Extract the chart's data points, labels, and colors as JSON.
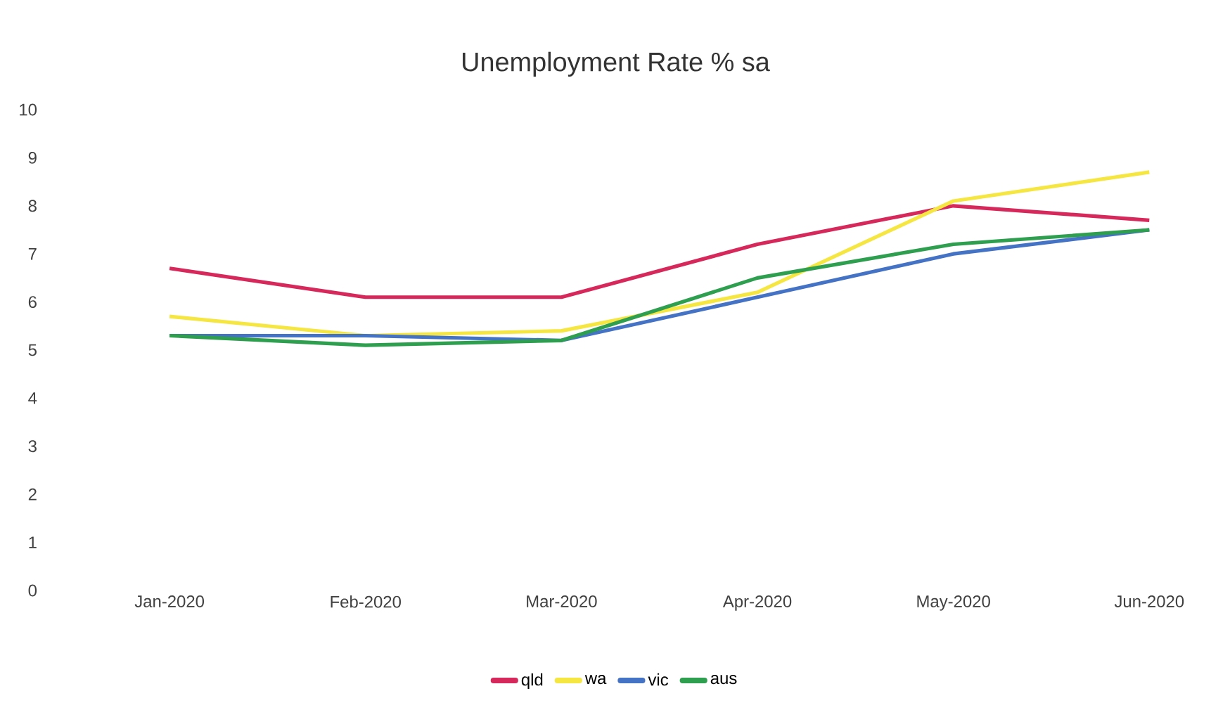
{
  "chart_data": {
    "type": "line",
    "title": "Unemployment Rate % sa",
    "categories": [
      "Jan-2020",
      "Feb-2020",
      "Mar-2020",
      "Apr-2020",
      "May-2020",
      "Jun-2020"
    ],
    "series": [
      {
        "name": "qld",
        "color": "#d6285a",
        "values": [
          6.7,
          6.1,
          6.1,
          7.2,
          8.0,
          7.7
        ]
      },
      {
        "name": "wa",
        "color": "#f5e642",
        "values": [
          5.7,
          5.3,
          5.4,
          6.2,
          8.1,
          8.7
        ]
      },
      {
        "name": "vic",
        "color": "#4472c4",
        "values": [
          5.3,
          5.3,
          5.2,
          6.1,
          7.0,
          7.5
        ]
      },
      {
        "name": "aus",
        "color": "#2e9e4f",
        "values": [
          5.3,
          5.1,
          5.2,
          6.5,
          7.2,
          7.5
        ]
      }
    ],
    "ylim": [
      0,
      10
    ],
    "yticks": [
      0,
      1,
      2,
      3,
      4,
      5,
      6,
      7,
      8,
      9,
      10
    ],
    "grid": false,
    "legend": "bottom",
    "marker": "none",
    "line_style": "solid"
  }
}
